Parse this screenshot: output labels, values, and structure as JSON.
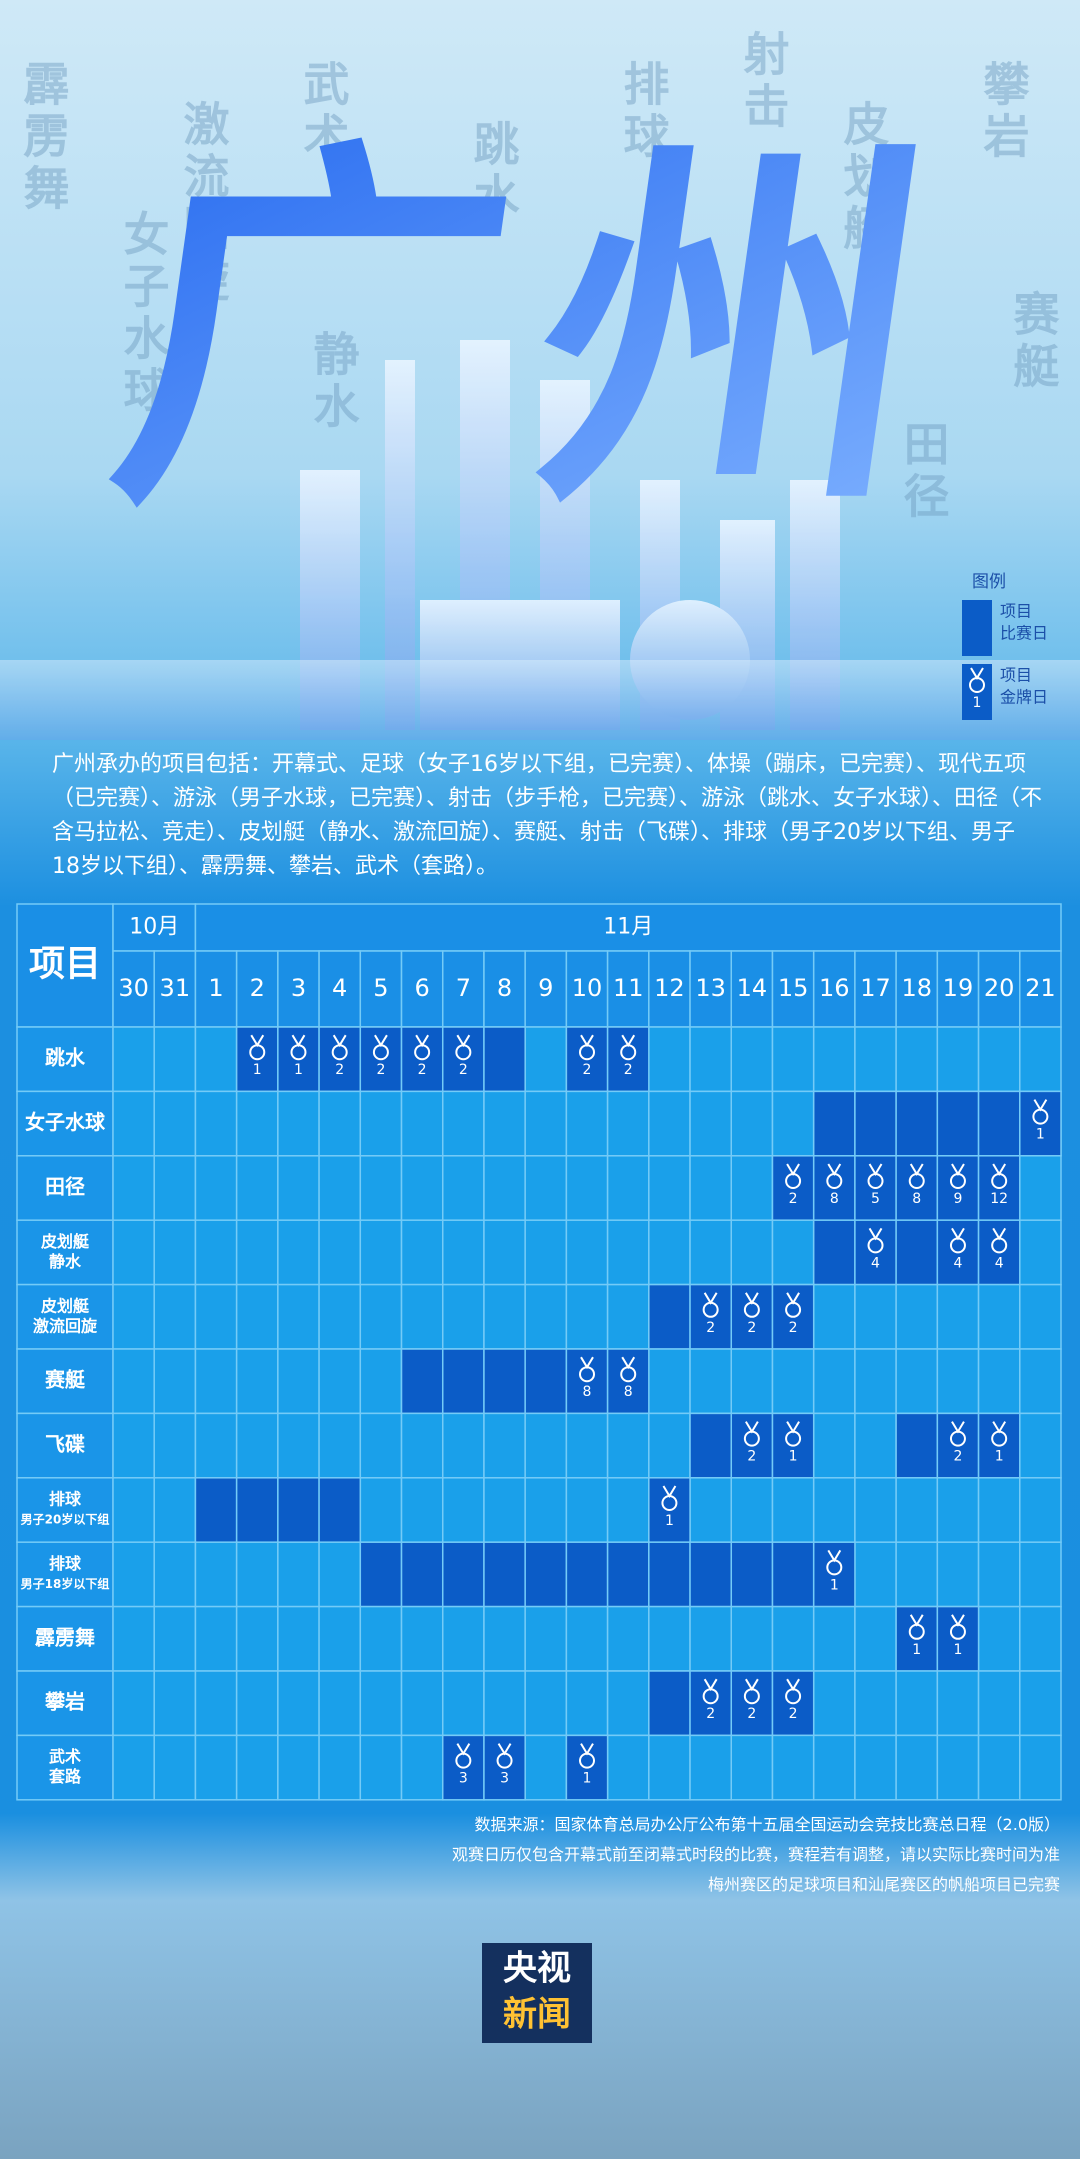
{
  "header": {
    "title": "广州",
    "background_words": [
      "霹雳舞",
      "女子水球",
      "激流回旋",
      "武术",
      "静水",
      "跳水",
      "排球",
      "射击",
      "皮划艇",
      "攀岩",
      "赛艇",
      "田径"
    ]
  },
  "legend": {
    "title": "图例",
    "match_day": [
      "项目",
      "比赛日"
    ],
    "medal_day": [
      "项目",
      "金牌日"
    ],
    "medal_example": 1
  },
  "intro": "广州承办的项目包括：开幕式、足球（女子16岁以下组，已完赛）、体操（蹦床，已完赛）、现代五项（已完赛）、游泳（男子水球，已完赛）、射击（步手枪，已完赛）、游泳（跳水、女子水球）、田径（不含马拉松、竞走）、皮划艇（静水、激流回旋）、赛艇、射击（飞碟）、排球（男子20岁以下组、男子18岁以下组）、霹雳舞、攀岩、武术（套路）。",
  "table": {
    "corner": "项目",
    "months": [
      {
        "label": "10月",
        "days": [
          30,
          31
        ]
      },
      {
        "label": "11月",
        "days": [
          1,
          2,
          3,
          4,
          5,
          6,
          7,
          8,
          9,
          10,
          11,
          12,
          13,
          14,
          15,
          16,
          17,
          18,
          19,
          20,
          21
        ]
      }
    ],
    "rows": [
      {
        "name": [
          "跳水"
        ],
        "match_days": [
          2,
          3,
          4,
          5,
          6,
          7,
          8,
          10,
          11
        ],
        "medals": [
          {
            "day": 2,
            "count": 1
          },
          {
            "day": 3,
            "count": 1
          },
          {
            "day": 4,
            "count": 2
          },
          {
            "day": 5,
            "count": 2
          },
          {
            "day": 6,
            "count": 2
          },
          {
            "day": 7,
            "count": 2
          },
          {
            "day": 10,
            "count": 2
          },
          {
            "day": 11,
            "count": 2
          }
        ]
      },
      {
        "name": [
          "女子水球"
        ],
        "match_days": [
          16,
          17,
          18,
          19,
          20,
          21
        ],
        "medals": [
          {
            "day": 21,
            "count": 1
          }
        ]
      },
      {
        "name": [
          "田径"
        ],
        "match_days": [
          15,
          16,
          17,
          18,
          19,
          20
        ],
        "medals": [
          {
            "day": 15,
            "count": 2
          },
          {
            "day": 16,
            "count": 8
          },
          {
            "day": 17,
            "count": 5
          },
          {
            "day": 18,
            "count": 8
          },
          {
            "day": 19,
            "count": 9
          },
          {
            "day": 20,
            "count": 12
          }
        ]
      },
      {
        "name": [
          "皮划艇",
          "静水"
        ],
        "match_days": [
          16,
          17,
          18,
          19,
          20
        ],
        "medals": [
          {
            "day": 17,
            "count": 4
          },
          {
            "day": 19,
            "count": 4
          },
          {
            "day": 20,
            "count": 4
          }
        ]
      },
      {
        "name": [
          "皮划艇",
          "激流回旋"
        ],
        "match_days": [
          12,
          13,
          14,
          15
        ],
        "medals": [
          {
            "day": 13,
            "count": 2
          },
          {
            "day": 14,
            "count": 2
          },
          {
            "day": 15,
            "count": 2
          }
        ]
      },
      {
        "name": [
          "赛艇"
        ],
        "match_days": [
          6,
          7,
          8,
          9,
          10,
          11
        ],
        "medals": [
          {
            "day": 10,
            "count": 8
          },
          {
            "day": 11,
            "count": 8
          }
        ]
      },
      {
        "name": [
          "飞碟"
        ],
        "match_days": [
          13,
          14,
          15,
          18,
          19,
          20
        ],
        "medals": [
          {
            "day": 14,
            "count": 2
          },
          {
            "day": 15,
            "count": 1
          },
          {
            "day": 19,
            "count": 2
          },
          {
            "day": 20,
            "count": 1
          }
        ]
      },
      {
        "name": [
          "排球",
          "男子20岁以下组"
        ],
        "match_days": [
          1,
          2,
          3,
          4,
          12
        ],
        "medals": [
          {
            "day": 12,
            "count": 1
          }
        ]
      },
      {
        "name": [
          "排球",
          "男子18岁以下组"
        ],
        "match_days": [
          5,
          6,
          7,
          8,
          9,
          10,
          11,
          12,
          13,
          14,
          15,
          16
        ],
        "medals": [
          {
            "day": 16,
            "count": 1
          }
        ]
      },
      {
        "name": [
          "霹雳舞"
        ],
        "match_days": [
          18,
          19
        ],
        "medals": [
          {
            "day": 18,
            "count": 1
          },
          {
            "day": 19,
            "count": 1
          }
        ]
      },
      {
        "name": [
          "攀岩"
        ],
        "match_days": [
          12,
          13,
          14,
          15
        ],
        "medals": [
          {
            "day": 13,
            "count": 2
          },
          {
            "day": 14,
            "count": 2
          },
          {
            "day": 15,
            "count": 2
          }
        ]
      },
      {
        "name": [
          "武术",
          "套路"
        ],
        "match_days": [
          7,
          8,
          10
        ],
        "medals": [
          {
            "day": 7,
            "count": 3
          },
          {
            "day": 8,
            "count": 3
          },
          {
            "day": 10,
            "count": 1
          }
        ]
      }
    ]
  },
  "notes": [
    "数据来源：国家体育总局办公厅公布第十五届全国运动会竞技比赛总日程（2.0版）",
    "观赛日历仅包含开幕式前至闭幕式时段的比赛，赛程若有调整，请以实际比赛时间为准",
    "梅州赛区的足球项目和汕尾赛区的帆船项目已完赛"
  ],
  "logo": [
    "央视",
    "新闻"
  ]
}
